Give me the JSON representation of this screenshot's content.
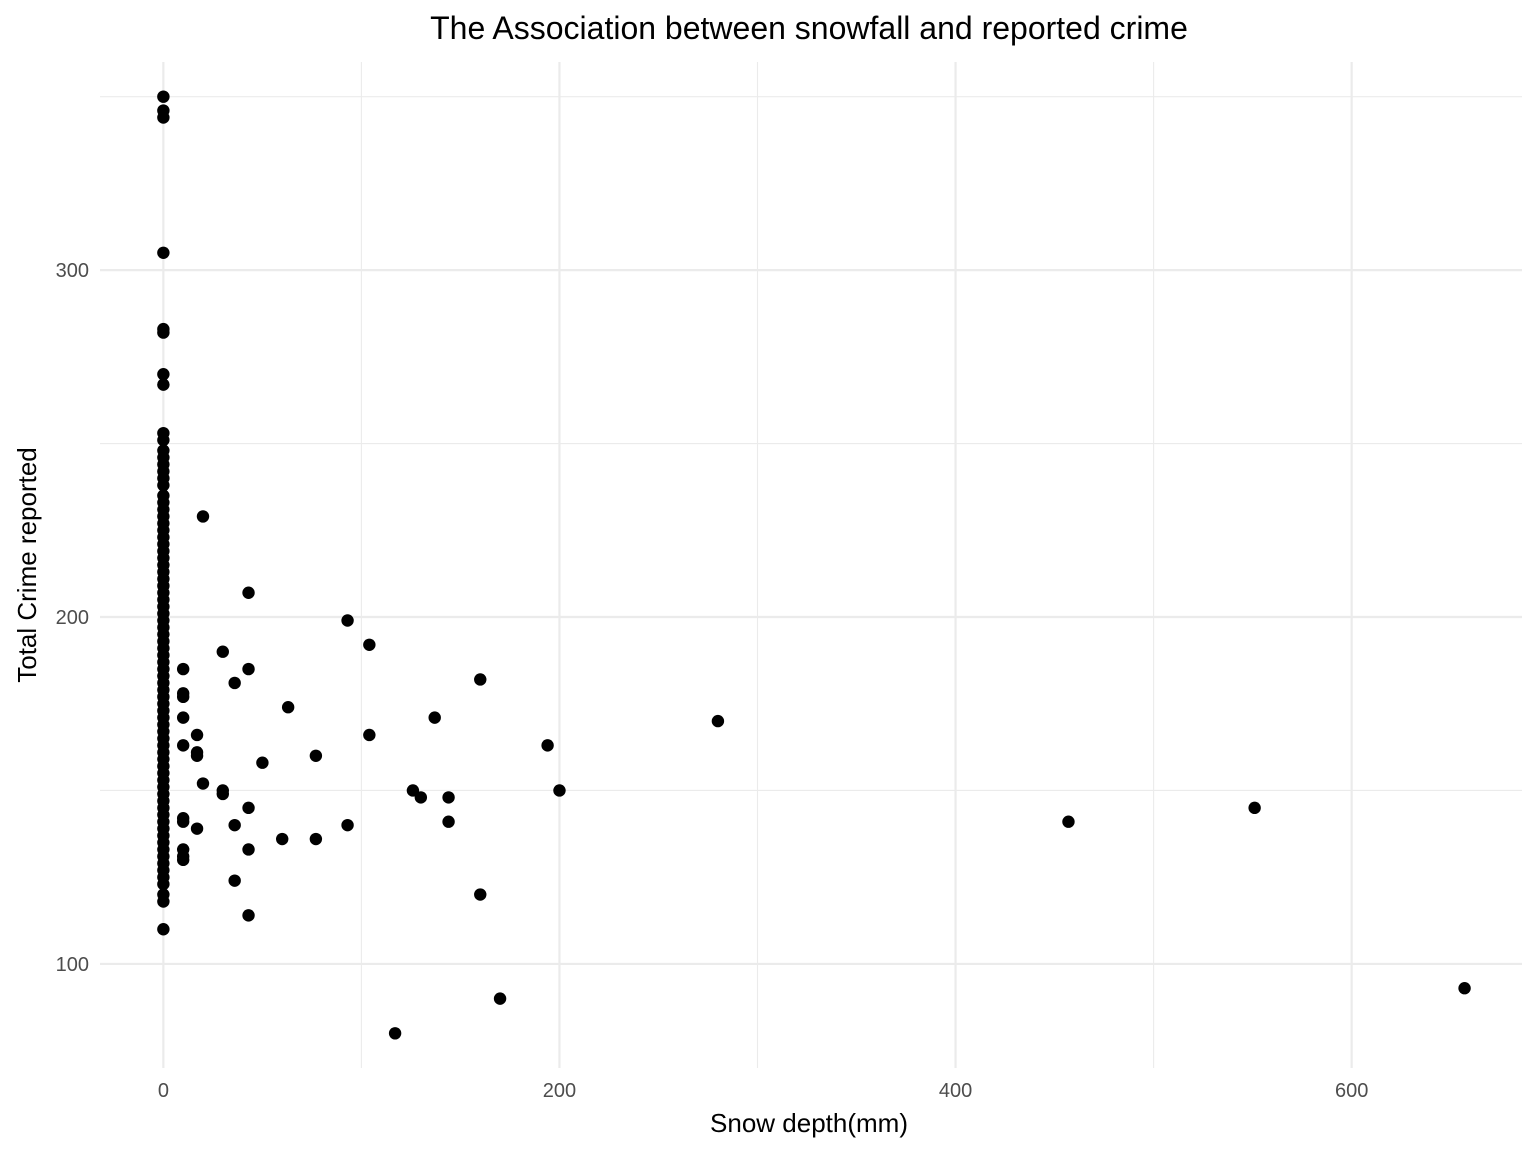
{
  "chart_data": {
    "type": "scatter",
    "title": "The Association between snowfall and reported crime",
    "xlabel": "Snow depth(mm)",
    "ylabel": "Total Crime reported",
    "xlim": [
      -32,
      686
    ],
    "ylim": [
      70,
      360
    ],
    "x_ticks": [
      0,
      200,
      400,
      600
    ],
    "y_ticks": [
      100,
      200,
      300
    ],
    "x_tick_labels": [
      "0",
      "200",
      "400",
      "600"
    ],
    "y_tick_labels": [
      "100",
      "200",
      "300"
    ],
    "x_minor": [
      100,
      300,
      500
    ],
    "y_minor": [
      150,
      250,
      350
    ],
    "grid": true,
    "point_color": "#000000",
    "points": [
      [
        0,
        350
      ],
      [
        0,
        346
      ],
      [
        0,
        344
      ],
      [
        0,
        305
      ],
      [
        0,
        283
      ],
      [
        0,
        282
      ],
      [
        0,
        270
      ],
      [
        0,
        267
      ],
      [
        0,
        253
      ],
      [
        0,
        251
      ],
      [
        0,
        248
      ],
      [
        0,
        246
      ],
      [
        0,
        244
      ],
      [
        0,
        242
      ],
      [
        0,
        240
      ],
      [
        0,
        238
      ],
      [
        0,
        235
      ],
      [
        0,
        233
      ],
      [
        0,
        231
      ],
      [
        0,
        229
      ],
      [
        0,
        227
      ],
      [
        0,
        225
      ],
      [
        0,
        223
      ],
      [
        0,
        221
      ],
      [
        0,
        219
      ],
      [
        0,
        217
      ],
      [
        0,
        215
      ],
      [
        0,
        213
      ],
      [
        0,
        211
      ],
      [
        0,
        209
      ],
      [
        0,
        207
      ],
      [
        0,
        205
      ],
      [
        0,
        203
      ],
      [
        0,
        201
      ],
      [
        0,
        199
      ],
      [
        0,
        197
      ],
      [
        0,
        195
      ],
      [
        0,
        193
      ],
      [
        0,
        191
      ],
      [
        0,
        189
      ],
      [
        0,
        187
      ],
      [
        0,
        185
      ],
      [
        0,
        183
      ],
      [
        0,
        181
      ],
      [
        0,
        179
      ],
      [
        0,
        177
      ],
      [
        0,
        175
      ],
      [
        0,
        173
      ],
      [
        0,
        171
      ],
      [
        0,
        169
      ],
      [
        0,
        167
      ],
      [
        0,
        165
      ],
      [
        0,
        163
      ],
      [
        0,
        161
      ],
      [
        0,
        159
      ],
      [
        0,
        157
      ],
      [
        0,
        155
      ],
      [
        0,
        153
      ],
      [
        0,
        151
      ],
      [
        0,
        149
      ],
      [
        0,
        147
      ],
      [
        0,
        145
      ],
      [
        0,
        143
      ],
      [
        0,
        141
      ],
      [
        0,
        139
      ],
      [
        0,
        137
      ],
      [
        0,
        135
      ],
      [
        0,
        133
      ],
      [
        0,
        131
      ],
      [
        0,
        129
      ],
      [
        0,
        127
      ],
      [
        0,
        125
      ],
      [
        0,
        123
      ],
      [
        0,
        120
      ],
      [
        0,
        118
      ],
      [
        0,
        110
      ],
      [
        20,
        229
      ],
      [
        43,
        207
      ],
      [
        30,
        190
      ],
      [
        43,
        185
      ],
      [
        36,
        181
      ],
      [
        10,
        185
      ],
      [
        10,
        178
      ],
      [
        10,
        177
      ],
      [
        10,
        171
      ],
      [
        10,
        163
      ],
      [
        17,
        166
      ],
      [
        17,
        161
      ],
      [
        17,
        160
      ],
      [
        20,
        152
      ],
      [
        30,
        150
      ],
      [
        30,
        149
      ],
      [
        10,
        142
      ],
      [
        10,
        141
      ],
      [
        17,
        139
      ],
      [
        10,
        133
      ],
      [
        10,
        131
      ],
      [
        10,
        130
      ],
      [
        36,
        140
      ],
      [
        43,
        145
      ],
      [
        43,
        133
      ],
      [
        36,
        124
      ],
      [
        43,
        114
      ],
      [
        50,
        158
      ],
      [
        63,
        174
      ],
      [
        60,
        136
      ],
      [
        77,
        160
      ],
      [
        77,
        136
      ],
      [
        93,
        199
      ],
      [
        104,
        192
      ],
      [
        104,
        166
      ],
      [
        93,
        140
      ],
      [
        160,
        182
      ],
      [
        137,
        171
      ],
      [
        126,
        150
      ],
      [
        130,
        148
      ],
      [
        144,
        148
      ],
      [
        144,
        141
      ],
      [
        160,
        120
      ],
      [
        117,
        80
      ],
      [
        170,
        90
      ],
      [
        194,
        163
      ],
      [
        200,
        150
      ],
      [
        280,
        170
      ],
      [
        457,
        141
      ],
      [
        551,
        145
      ],
      [
        657,
        93
      ]
    ]
  }
}
